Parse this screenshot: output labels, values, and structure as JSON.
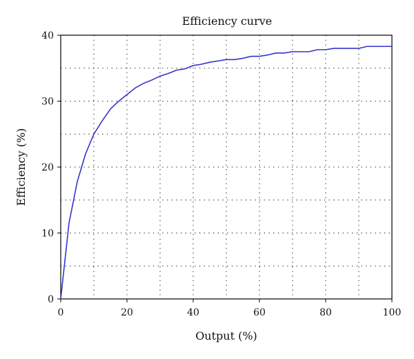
{
  "chart_data": {
    "type": "line",
    "title": "Efficiency curve",
    "xlabel": "Output (%)",
    "ylabel": "Efficiency (%)",
    "xlim": [
      0,
      100
    ],
    "ylim": [
      0,
      40
    ],
    "x_ticks": [
      0,
      20,
      40,
      60,
      80,
      100
    ],
    "y_ticks": [
      0,
      10,
      20,
      30,
      40
    ],
    "x_grid": [
      10,
      20,
      30,
      40,
      50,
      60,
      70,
      80,
      90
    ],
    "y_grid": [
      5,
      10,
      15,
      20,
      25,
      30,
      35
    ],
    "grid": true,
    "grid_style": "dotted",
    "line_color": "#3333cc",
    "series": [
      {
        "x": [
          0,
          2.5,
          5,
          7.5,
          10,
          12.5,
          15,
          17.5,
          20,
          22.5,
          25,
          27.5,
          30,
          32.5,
          35,
          37.5,
          40,
          42.5,
          45,
          47.5,
          50,
          52.5,
          55,
          57.5,
          60,
          62.5,
          65,
          67.5,
          70,
          72.5,
          75,
          77.5,
          80,
          82.5,
          85,
          87.5,
          90,
          92.5,
          95,
          97.5,
          100
        ],
        "y": [
          0,
          11.5,
          17.8,
          22,
          25,
          27,
          28.8,
          30,
          31,
          32,
          32.7,
          33.2,
          33.8,
          34.2,
          34.7,
          34.9,
          35.4,
          35.6,
          35.9,
          36.1,
          36.3,
          36.3,
          36.5,
          36.8,
          36.8,
          37.0,
          37.3,
          37.3,
          37.5,
          37.5,
          37.5,
          37.8,
          37.8,
          38.0,
          38.0,
          38.0,
          38.0,
          38.3,
          38.3,
          38.3,
          38.3
        ]
      }
    ]
  }
}
